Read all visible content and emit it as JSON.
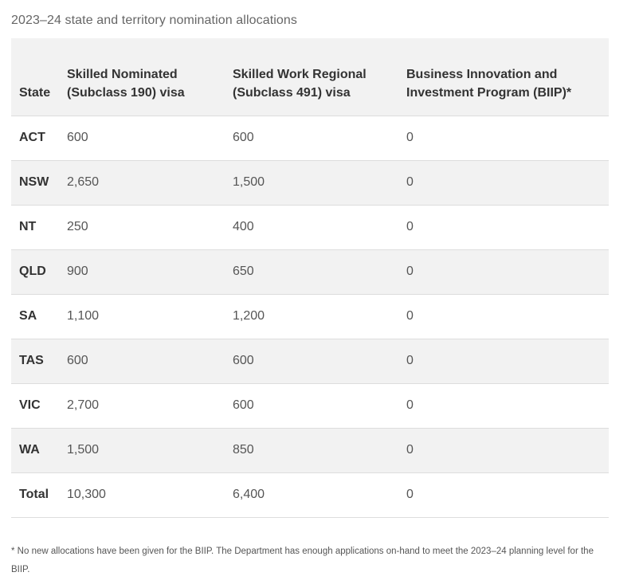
{
  "caption": "2023–24 state and territory nomination allocations",
  "table": {
    "headers": [
      "State",
      "Skilled Nominated (Subclass 190) visa",
      "Skilled Work Regional (Subclass 491) visa",
      "Business Innovation and Investment Program (BIIP)*"
    ],
    "rows": [
      {
        "state": "ACT",
        "subclass_190": "600",
        "subclass_491": "600",
        "biip": "0"
      },
      {
        "state": "NSW",
        "subclass_190": "2,650",
        "subclass_491": "1,500",
        "biip": "0"
      },
      {
        "state": "NT",
        "subclass_190": "250",
        "subclass_491": "400",
        "biip": "0"
      },
      {
        "state": "QLD",
        "subclass_190": "900",
        "subclass_491": "650",
        "biip": "0"
      },
      {
        "state": "SA",
        "subclass_190": "1,100",
        "subclass_491": "1,200",
        "biip": "0"
      },
      {
        "state": "TAS",
        "subclass_190": "600",
        "subclass_491": "600",
        "biip": "0"
      },
      {
        "state": "VIC",
        "subclass_190": "2,700",
        "subclass_491": "600",
        "biip": "0"
      },
      {
        "state": "WA",
        "subclass_190": "1,500",
        "subclass_491": "850",
        "biip": "0"
      },
      {
        "state": "Total",
        "subclass_190": "10,300",
        "subclass_491": "6,400",
        "biip": "0"
      }
    ]
  },
  "footnote": "* No new allocations have been given for the BIIP. The Department has enough applications on-hand to meet the 2023–24 planning level for the BIIP."
}
